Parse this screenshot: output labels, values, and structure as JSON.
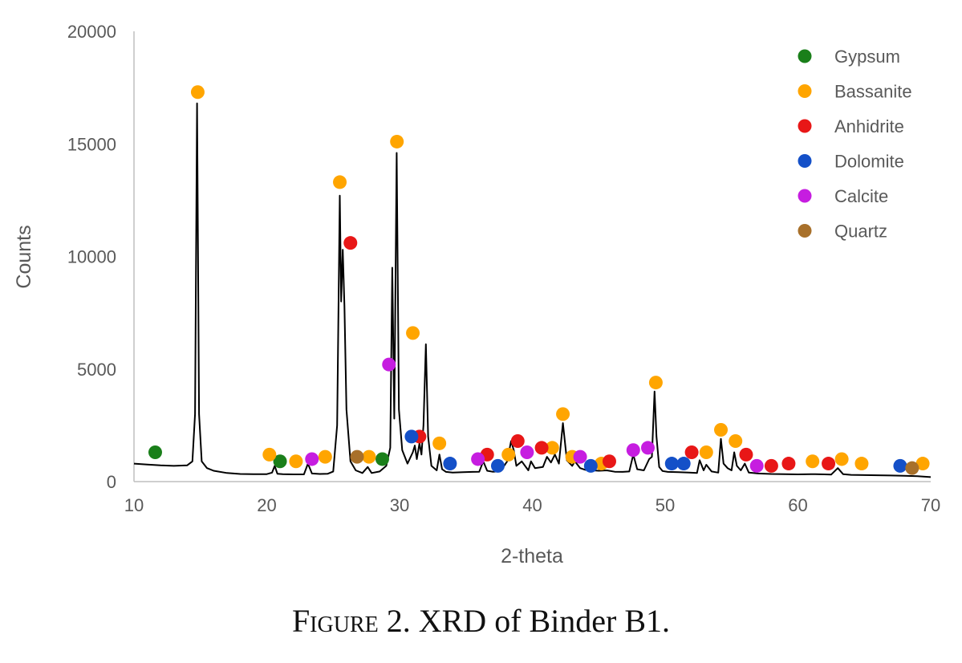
{
  "caption": {
    "label": "Figure",
    "text": "2. XRD of Binder B1."
  },
  "chart_data": {
    "type": "line",
    "title": "",
    "xlabel": "2-theta",
    "ylabel": "Counts",
    "xlim": [
      10,
      70
    ],
    "ylim": [
      0,
      20000
    ],
    "x_ticks": [
      10,
      20,
      30,
      40,
      50,
      60,
      70
    ],
    "y_ticks": [
      0,
      5000,
      10000,
      15000,
      20000
    ],
    "grid": false,
    "legend_position": "top-right",
    "line_color": "#000000",
    "series": [
      {
        "x": [
          10,
          11,
          12,
          13,
          14,
          14.4,
          14.6,
          14.75,
          14.9,
          15.1,
          15.5,
          16,
          17,
          18,
          19,
          20,
          20.4,
          20.6,
          20.8,
          21.2,
          22,
          22.8,
          23.1,
          23.4,
          24,
          24.6,
          25.0,
          25.3,
          25.5,
          25.6,
          25.72,
          25.85,
          26.0,
          26.3,
          26.7,
          27.2,
          27.6,
          27.9,
          28.5,
          29.0,
          29.3,
          29.45,
          29.6,
          29.78,
          29.95,
          30.2,
          30.6,
          31.0,
          31.15,
          31.3,
          31.5,
          31.65,
          31.8,
          31.98,
          32.15,
          32.4,
          32.8,
          33.0,
          33.2,
          33.5,
          34,
          34.8,
          35.5,
          36.0,
          36.3,
          36.6,
          37,
          37.6,
          38.1,
          38.4,
          38.6,
          38.8,
          39.2,
          39.7,
          39.9,
          40.2,
          40.8,
          41.1,
          41.4,
          41.7,
          42.0,
          42.3,
          42.6,
          43.0,
          43.2,
          43.6,
          44,
          45,
          45.6,
          46.2,
          46.8,
          47.3,
          47.6,
          47.9,
          48.4,
          48.8,
          49.0,
          49.2,
          49.35,
          49.55,
          49.8,
          50.2,
          51,
          51.8,
          52.4,
          52.6,
          52.9,
          53.1,
          53.5,
          54.0,
          54.2,
          54.4,
          54.7,
          55.0,
          55.2,
          55.4,
          55.7,
          56.0,
          56.3,
          57,
          58,
          59,
          60,
          61,
          62,
          62.5,
          63,
          63.4,
          64,
          65,
          66,
          67,
          68,
          69,
          70
        ],
        "y": [
          800,
          760,
          720,
          700,
          720,
          900,
          3000,
          16800,
          3000,
          900,
          600,
          480,
          380,
          340,
          330,
          330,
          400,
          700,
          350,
          330,
          320,
          320,
          800,
          360,
          340,
          350,
          450,
          2500,
          12700,
          8000,
          10300,
          7800,
          3200,
          900,
          500,
          380,
          650,
          380,
          450,
          700,
          1500,
          9500,
          2800,
          14600,
          3200,
          1400,
          800,
          1300,
          1600,
          1000,
          1700,
          1200,
          2500,
          6100,
          2000,
          700,
          500,
          1200,
          550,
          430,
          400,
          420,
          430,
          440,
          900,
          480,
          440,
          460,
          900,
          1800,
          1400,
          700,
          900,
          500,
          900,
          600,
          650,
          1100,
          850,
          1200,
          800,
          2600,
          950,
          700,
          900,
          600,
          520,
          480,
          500,
          440,
          430,
          450,
          1200,
          550,
          500,
          1000,
          1100,
          4000,
          2000,
          650,
          470,
          430,
          420,
          400,
          380,
          950,
          500,
          750,
          450,
          400,
          1900,
          800,
          600,
          500,
          1300,
          700,
          500,
          800,
          400,
          360,
          340,
          330,
          320,
          330,
          320,
          310,
          600,
          330,
          300,
          290,
          280,
          270,
          260,
          240,
          200
        ]
      }
    ],
    "phases": [
      {
        "name": "Gypsum",
        "color": "#1a7f1a",
        "markers": [
          [
            11.6,
            1300
          ],
          [
            21.0,
            900
          ],
          [
            28.7,
            1000
          ]
        ]
      },
      {
        "name": "Bassanite",
        "color": "#ffa500",
        "markers": [
          [
            14.8,
            17300
          ],
          [
            20.2,
            1200
          ],
          [
            22.2,
            900
          ],
          [
            24.4,
            1100
          ],
          [
            27.7,
            1100
          ],
          [
            25.5,
            13300
          ],
          [
            29.8,
            15100
          ],
          [
            31.0,
            6600
          ],
          [
            33.0,
            1700
          ],
          [
            38.2,
            1200
          ],
          [
            41.5,
            1500
          ],
          [
            42.3,
            3000
          ],
          [
            43.0,
            1100
          ],
          [
            45.2,
            800
          ],
          [
            49.3,
            4400
          ],
          [
            53.1,
            1300
          ],
          [
            54.2,
            2300
          ],
          [
            55.3,
            1800
          ],
          [
            61.1,
            900
          ],
          [
            63.3,
            1000
          ],
          [
            64.8,
            800
          ],
          [
            69.4,
            800
          ]
        ]
      },
      {
        "name": "Anhidrite",
        "color": "#e81717",
        "markers": [
          [
            26.3,
            10600
          ],
          [
            31.5,
            2000
          ],
          [
            36.6,
            1200
          ],
          [
            38.9,
            1800
          ],
          [
            40.7,
            1500
          ],
          [
            45.8,
            900
          ],
          [
            52.0,
            1300
          ],
          [
            56.1,
            1200
          ],
          [
            58.0,
            700
          ],
          [
            59.3,
            800
          ],
          [
            62.3,
            800
          ]
        ]
      },
      {
        "name": "Dolomite",
        "color": "#1450c8",
        "markers": [
          [
            30.9,
            2000
          ],
          [
            33.8,
            800
          ],
          [
            37.4,
            700
          ],
          [
            44.4,
            700
          ],
          [
            50.5,
            800
          ],
          [
            51.4,
            800
          ],
          [
            67.7,
            700
          ]
        ]
      },
      {
        "name": "Calcite",
        "color": "#c61de0",
        "markers": [
          [
            23.4,
            1000
          ],
          [
            29.2,
            5200
          ],
          [
            35.9,
            1000
          ],
          [
            39.6,
            1300
          ],
          [
            43.6,
            1100
          ],
          [
            47.6,
            1400
          ],
          [
            48.7,
            1500
          ],
          [
            56.9,
            700
          ]
        ]
      },
      {
        "name": "Quartz",
        "color": "#a8702a",
        "markers": [
          [
            26.8,
            1100
          ],
          [
            68.6,
            600
          ]
        ]
      }
    ]
  }
}
